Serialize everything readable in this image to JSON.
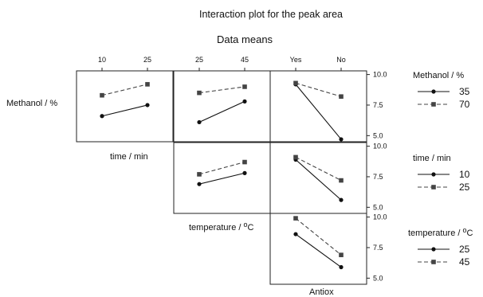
{
  "chart_data": {
    "type": "line",
    "title": "Interaction plot for the peak area",
    "subtitle": "Data means",
    "factors": [
      {
        "name": "Methanol / %",
        "levels": [
          "35",
          "70"
        ]
      },
      {
        "name": "time / min",
        "levels": [
          "10",
          "25"
        ]
      },
      {
        "name": "temperature / ",
        "name_suffix": "o",
        "name_tail": "C",
        "levels": [
          "25",
          "45"
        ]
      },
      {
        "name": "Antiox",
        "levels": [
          "Yes",
          "No"
        ]
      }
    ],
    "ylim": [
      4.5,
      10.3
    ],
    "yticks": [
      "5.0",
      "7.5",
      "10.0"
    ],
    "yticks_values": [
      5.0,
      7.5,
      10.0
    ],
    "panels": [
      {
        "row": 0,
        "col": 1,
        "line_factor": 0,
        "series": [
          {
            "level": "35",
            "values": [
              6.6,
              7.5
            ]
          },
          {
            "level": "70",
            "values": [
              8.3,
              9.2
            ]
          }
        ]
      },
      {
        "row": 0,
        "col": 2,
        "line_factor": 0,
        "series": [
          {
            "level": "35",
            "values": [
              6.1,
              7.8
            ]
          },
          {
            "level": "70",
            "values": [
              8.5,
              9.0
            ]
          }
        ]
      },
      {
        "row": 0,
        "col": 3,
        "line_factor": 0,
        "series": [
          {
            "level": "35",
            "values": [
              9.2,
              4.7
            ]
          },
          {
            "level": "70",
            "values": [
              9.3,
              8.2
            ]
          }
        ]
      },
      {
        "row": 1,
        "col": 2,
        "line_factor": 1,
        "series": [
          {
            "level": "10",
            "values": [
              6.9,
              7.8
            ]
          },
          {
            "level": "25",
            "values": [
              7.7,
              8.7
            ]
          }
        ]
      },
      {
        "row": 1,
        "col": 3,
        "line_factor": 1,
        "series": [
          {
            "level": "10",
            "values": [
              8.9,
              5.6
            ]
          },
          {
            "level": "25",
            "values": [
              9.1,
              7.2
            ]
          }
        ]
      },
      {
        "row": 2,
        "col": 3,
        "line_factor": 2,
        "series": [
          {
            "level": "25",
            "values": [
              8.6,
              5.9
            ]
          },
          {
            "level": "45",
            "values": [
              9.9,
              6.9
            ]
          }
        ]
      }
    ],
    "line_styles": {
      "level1": {
        "dash": "solid",
        "marker": "circle",
        "color": "#111111"
      },
      "level2": {
        "dash": "dashed",
        "marker": "square",
        "color": "#444444"
      }
    },
    "legends": [
      {
        "factor": 0,
        "title": "Methanol / %",
        "entries": [
          "35",
          "70"
        ]
      },
      {
        "factor": 1,
        "title": "time / min",
        "entries": [
          "10",
          "25"
        ]
      },
      {
        "factor": 2,
        "title": "temperature / ",
        "title_suffix": "o",
        "title_tail": "C",
        "entries": [
          "25",
          "45"
        ]
      }
    ],
    "grid": false,
    "legend_position": "right"
  }
}
